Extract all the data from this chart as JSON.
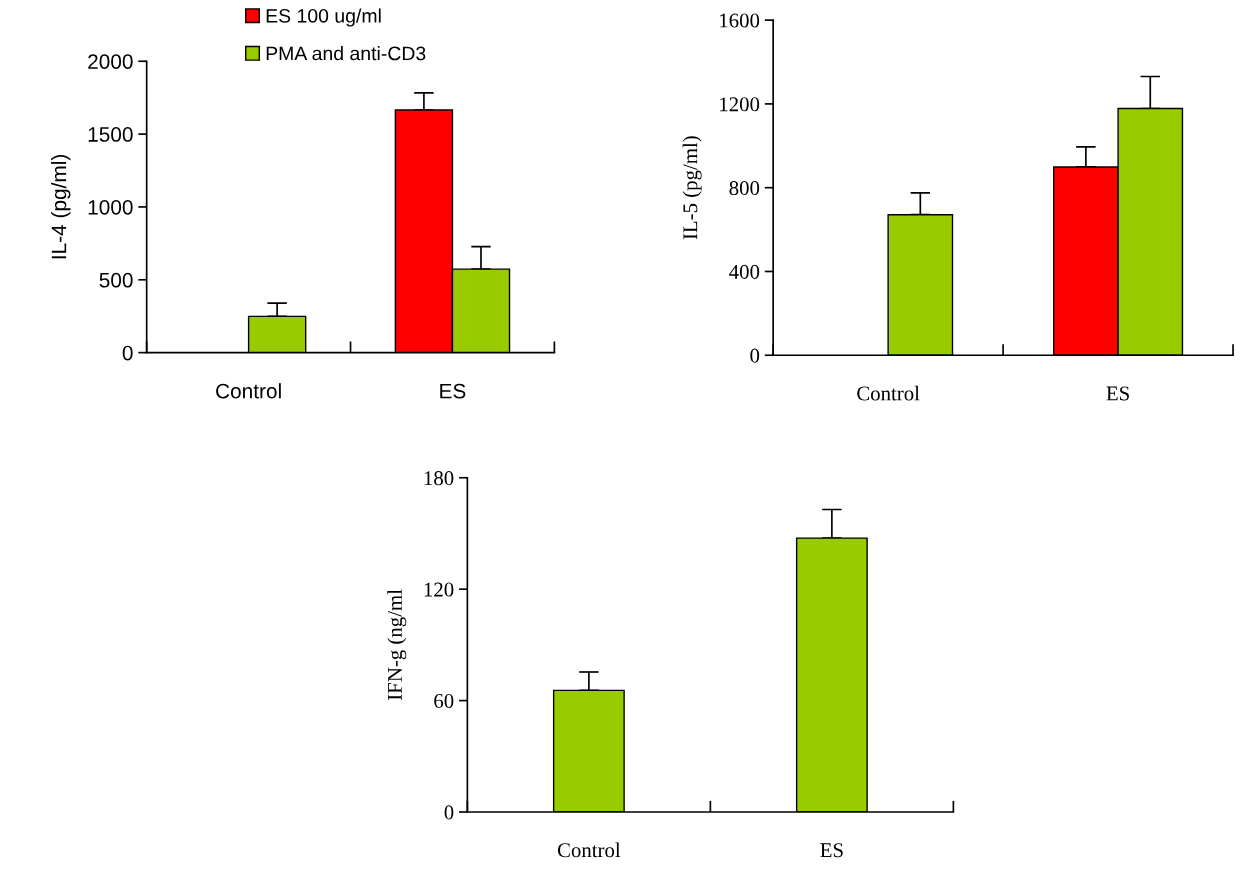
{
  "chart_data": [
    {
      "type": "bar",
      "ylabel": "IL-4 (pg/ml)",
      "categories": [
        "Control",
        "ES"
      ],
      "ylim": [
        0,
        2000
      ],
      "yticks": [
        0,
        500,
        1000,
        1500,
        2000
      ],
      "legend": "top left",
      "grid": false,
      "series": [
        {
          "name": "ES 100 ug/ml",
          "color": "#ff0000",
          "values": [
            null,
            1665
          ],
          "errors": [
            null,
            [
              1665,
              1783
            ]
          ]
        },
        {
          "name": "PMA and anti-CD3",
          "color": "#99cc00",
          "values": [
            249,
            573
          ],
          "errors": [
            [
              249,
              340
            ],
            [
              573,
              728
            ]
          ]
        }
      ]
    },
    {
      "type": "bar",
      "ylabel": "IL-5 (pg/ml)",
      "categories": [
        "Control",
        "ES"
      ],
      "ylim": [
        0,
        1600
      ],
      "yticks": [
        0,
        400,
        800,
        1200,
        1600
      ],
      "grid": false,
      "series": [
        {
          "color": "#ff0000",
          "values": [
            null,
            899
          ],
          "errors": [
            null,
            [
              899,
              995
            ]
          ]
        },
        {
          "color": "#99cc00",
          "values": [
            671,
            1178
          ],
          "errors": [
            [
              671,
              775
            ],
            [
              1178,
              1331
            ]
          ]
        }
      ]
    },
    {
      "type": "bar",
      "ylabel": "IFN-g (ng/ml",
      "categories": [
        "Control",
        "ES"
      ],
      "ylim": [
        0,
        180
      ],
      "yticks": [
        0,
        60,
        120,
        180
      ],
      "grid": false,
      "series": [
        {
          "color": "#99cc00",
          "values": [
            65.5,
            147.5
          ],
          "errors": [
            [
              65.5,
              75.4
            ],
            [
              147.5,
              162.9
            ]
          ]
        }
      ]
    }
  ]
}
